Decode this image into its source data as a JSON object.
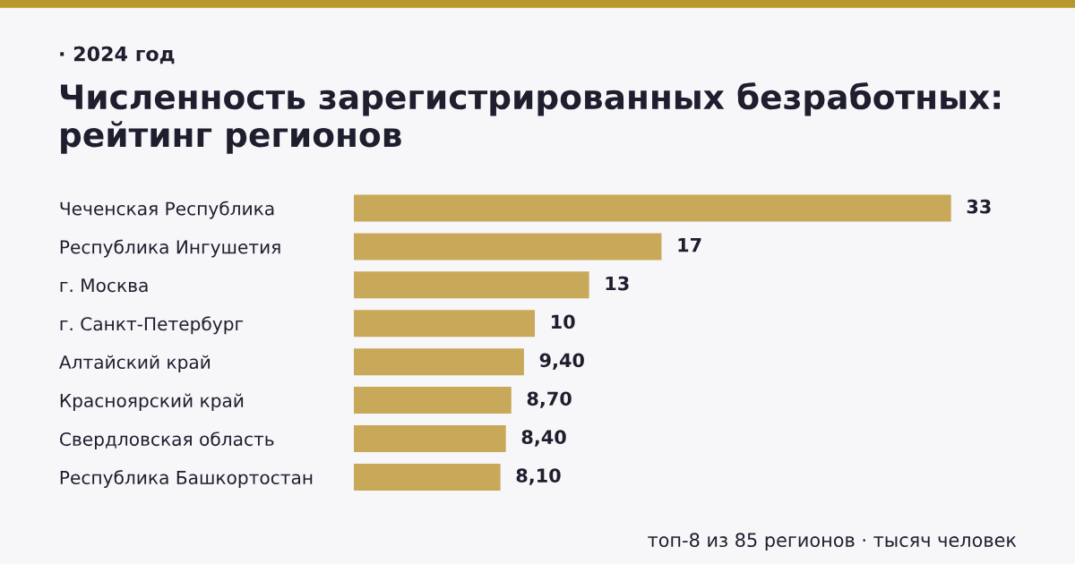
{
  "chart_data": {
    "type": "bar",
    "orientation": "horizontal",
    "subtitle": "· 2024 год",
    "title": "Численность зарегистрированных безработных: рейтинг регионов",
    "categories": [
      "Чеченская Республика",
      "Республика Ингушетия",
      "г. Москва",
      "г. Санкт-Петербург",
      "Алтайский край",
      "Красноярский край",
      "Свердловская область",
      "Республика Башкортостан"
    ],
    "values": [
      33,
      17,
      13,
      10,
      9.4,
      8.7,
      8.4,
      8.1
    ],
    "value_labels": [
      "33",
      "17",
      "13",
      "10",
      "9,40",
      "8,70",
      "8,40",
      "8,10"
    ],
    "color": "#c8a95a",
    "annotations": [
      "топ-8 из 85 регионов · тысяч человек"
    ]
  }
}
